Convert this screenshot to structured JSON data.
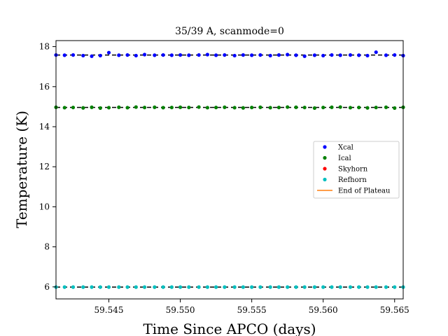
{
  "chart_data": {
    "type": "scatter",
    "title": "35/39 A, scanmode=0",
    "xlabel": "Time Since APCO (days)",
    "ylabel": "Temperature (K)",
    "xlim": [
      59.5413,
      59.5656
    ],
    "ylim": [
      5.4,
      18.3
    ],
    "x_ticks": [
      59.545,
      59.55,
      59.555,
      59.56,
      59.565
    ],
    "x_tick_labels": [
      "59.545",
      "59.550",
      "59.555",
      "59.560",
      "59.565"
    ],
    "y_ticks": [
      6,
      8,
      10,
      12,
      14,
      16,
      18
    ],
    "y_tick_labels": [
      "6",
      "8",
      "10",
      "12",
      "14",
      "16",
      "18"
    ],
    "grid": false,
    "legend_position": "center-right",
    "x": [
      59.5413,
      59.5419,
      59.5425,
      59.5432,
      59.5438,
      59.5444,
      59.545,
      59.5457,
      59.5463,
      59.5469,
      59.5475,
      59.5482,
      59.5488,
      59.5494,
      59.55,
      59.5506,
      59.5513,
      59.5519,
      59.5525,
      59.5531,
      59.5538,
      59.5544,
      59.555,
      59.5556,
      59.5563,
      59.5569,
      59.5575,
      59.5581,
      59.5587,
      59.5594,
      59.56,
      59.5606,
      59.5612,
      59.5619,
      59.5625,
      59.5631,
      59.5637,
      59.5644,
      59.565,
      59.5656
    ],
    "series": [
      {
        "name": "Xcal",
        "color": "#0000ff",
        "marker": "dot",
        "reference_level": 17.58,
        "values": [
          17.58,
          17.57,
          17.58,
          17.55,
          17.52,
          17.55,
          17.7,
          17.57,
          17.58,
          17.55,
          17.6,
          17.57,
          17.58,
          17.57,
          17.58,
          17.57,
          17.58,
          17.6,
          17.57,
          17.58,
          17.55,
          17.58,
          17.57,
          17.58,
          17.55,
          17.58,
          17.6,
          17.57,
          17.52,
          17.57,
          17.55,
          17.58,
          17.57,
          17.58,
          17.57,
          17.55,
          17.72,
          17.57,
          17.58,
          17.55
        ]
      },
      {
        "name": "Ical",
        "color": "#008000",
        "marker": "dot",
        "reference_level": 14.96,
        "values": [
          14.97,
          14.95,
          14.96,
          14.94,
          14.97,
          14.93,
          14.95,
          14.97,
          14.95,
          14.98,
          14.96,
          14.97,
          14.95,
          14.96,
          14.97,
          14.96,
          14.98,
          14.95,
          14.96,
          14.97,
          14.95,
          14.94,
          14.96,
          14.97,
          14.95,
          14.96,
          14.98,
          14.97,
          14.96,
          14.93,
          14.96,
          14.97,
          14.98,
          14.95,
          14.96,
          14.94,
          14.96,
          14.97,
          14.93,
          14.97
        ]
      },
      {
        "name": "Skyhorn",
        "color": "#ff0000",
        "marker": "dot",
        "values": []
      },
      {
        "name": "Refhorn",
        "color": "#00bfbf",
        "marker": "dot",
        "reference_level": 5.99,
        "values": [
          5.99,
          5.99,
          5.99,
          5.99,
          5.99,
          5.99,
          5.99,
          5.99,
          5.99,
          5.99,
          5.99,
          5.99,
          5.99,
          5.99,
          5.99,
          5.99,
          5.99,
          5.99,
          5.99,
          5.99,
          5.99,
          5.99,
          5.99,
          5.99,
          5.99,
          5.99,
          5.99,
          5.99,
          5.99,
          5.99,
          5.99,
          5.99,
          5.99,
          5.99,
          5.99,
          5.99,
          5.99,
          5.99,
          5.99,
          5.99
        ]
      },
      {
        "name": "End of Plateau",
        "color": "#ff7f0e",
        "marker": "line",
        "values": []
      }
    ]
  }
}
